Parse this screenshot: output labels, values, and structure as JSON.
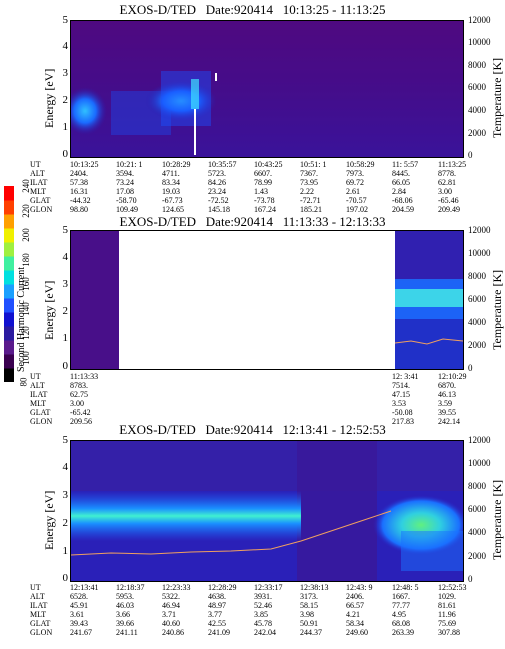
{
  "panels": [
    {
      "title": "EXOS-D/TED   Date:920414   10:13:25 - 11:13:25",
      "ylabel": "Energy [eV]",
      "ylabel_right": "Temperature [K]",
      "rows": [
        {
          "label": "UT",
          "values": [
            "10:13:25",
            "10:21: 1",
            "10:28:29",
            "10:35:57",
            "10:43:25",
            "10:51: 1",
            "10:58:29",
            "11: 5:57",
            "11:13:25"
          ]
        },
        {
          "label": "ALT",
          "values": [
            "2404.",
            "3594.",
            "4711.",
            "5723.",
            "6607.",
            "7367.",
            "7973.",
            "8445.",
            "8778."
          ]
        },
        {
          "label": "ILAT",
          "values": [
            "57.38",
            "73.24",
            "83.34",
            "84.26",
            "78.99",
            "73.95",
            "69.72",
            "66.05",
            "62.81"
          ]
        },
        {
          "label": "MLT",
          "values": [
            "16.31",
            "17.08",
            "19.03",
            "23.24",
            "1.43",
            "2.22",
            "2.61",
            "2.84",
            "3.00"
          ]
        },
        {
          "label": "GLAT",
          "values": [
            "-44.32",
            "-58.70",
            "-67.73",
            "-72.52",
            "-73.78",
            "-72.71",
            "-70.57",
            "-68.06",
            "-65.46"
          ]
        },
        {
          "label": "GLON",
          "values": [
            "98.80",
            "109.49",
            "124.65",
            "145.18",
            "167.24",
            "185.21",
            "197.02",
            "204.59",
            "209.49"
          ]
        }
      ]
    },
    {
      "title": "EXOS-D/TED   Date:920414   11:13:33 - 12:13:33",
      "ylabel": "Energy [eV]",
      "ylabel_right": "Temperature [K]",
      "rows": [
        {
          "label": "UT",
          "values": [
            "11:13:33",
            "",
            "",
            "",
            "",
            "",
            "",
            "12: 3:41",
            "12:10:29"
          ]
        },
        {
          "label": "ALT",
          "values": [
            "8783.",
            "",
            "",
            "",
            "",
            "",
            "",
            "7514.",
            "6870."
          ]
        },
        {
          "label": "ILAT",
          "values": [
            "62.75",
            "",
            "",
            "",
            "",
            "",
            "",
            "47.15",
            "46.13"
          ]
        },
        {
          "label": "MLT",
          "values": [
            "3.00",
            "",
            "",
            "",
            "",
            "",
            "",
            "3.53",
            "3.59"
          ]
        },
        {
          "label": "GLAT",
          "values": [
            "-65.42",
            "",
            "",
            "",
            "",
            "",
            "",
            "-50.08",
            "39.55"
          ]
        },
        {
          "label": "GLON",
          "values": [
            "209.56",
            "",
            "",
            "",
            "",
            "",
            "",
            "217.83",
            "242.14"
          ]
        }
      ]
    },
    {
      "title": "EXOS-D/TED   Date:920414   12:13:41 - 12:52:53",
      "ylabel": "Energy [eV]",
      "ylabel_right": "Temperature [K]",
      "rows": [
        {
          "label": "UT",
          "values": [
            "12:13:41",
            "12:18:37",
            "12:23:33",
            "12:28:29",
            "12:33:17",
            "12:38:13",
            "12:43: 9",
            "12:48: 5",
            "12:52:53"
          ]
        },
        {
          "label": "ALT",
          "values": [
            "6528.",
            "5953.",
            "5322.",
            "4638.",
            "3931.",
            "3173.",
            "2406.",
            "1667.",
            "1029."
          ]
        },
        {
          "label": "ILAT",
          "values": [
            "45.91",
            "46.03",
            "46.94",
            "48.97",
            "52.46",
            "58.15",
            "66.57",
            "77.77",
            "81.61"
          ]
        },
        {
          "label": "MLT",
          "values": [
            "3.61",
            "3.66",
            "3.71",
            "3.77",
            "3.85",
            "3.98",
            "4.21",
            "4.95",
            "11.96"
          ]
        },
        {
          "label": "GLAT",
          "values": [
            "39.43",
            "39.66",
            "40.60",
            "42.55",
            "45.78",
            "50.91",
            "58.34",
            "68.08",
            "75.69"
          ]
        },
        {
          "label": "GLON",
          "values": [
            "241.67",
            "241.11",
            "240.86",
            "241.09",
            "242.04",
            "244.37",
            "249.60",
            "263.39",
            "307.88"
          ]
        }
      ]
    }
  ],
  "colorbar": {
    "label": "Second Harmonic Current",
    "ticks": [
      "80",
      "100",
      "120",
      "140",
      "160",
      "180",
      "200",
      "220",
      "240"
    ],
    "colors": [
      "#000000",
      "#3a0050",
      "#5a1a8c",
      "#2a1aa0",
      "#1010d0",
      "#2050ff",
      "#1aa0ff",
      "#00e0e0",
      "#40f0a0",
      "#a0f040",
      "#f0f000",
      "#ffa000",
      "#ff4000",
      "#ff0000"
    ]
  },
  "chart_data": [
    {
      "type": "heatmap",
      "title": "EXOS-D/TED   Date:920414   10:13:25 - 11:13:25",
      "ylabel": "Energy [eV]",
      "ylabel_right": "Temperature [K]",
      "ylim": [
        0,
        5
      ],
      "ylim_right": [
        0,
        12000
      ],
      "yticks": [
        0,
        1,
        2,
        3,
        4,
        5
      ],
      "yticks_right": [
        0,
        2000,
        4000,
        6000,
        8000,
        10000,
        12000
      ]
    },
    {
      "type": "heatmap",
      "title": "EXOS-D/TED   Date:920414   11:13:33 - 12:13:33",
      "ylabel": "Energy [eV]",
      "ylabel_right": "Temperature [K]",
      "ylim": [
        0,
        5
      ],
      "ylim_right": [
        0,
        12000
      ],
      "yticks": [
        0,
        1,
        2,
        3,
        4,
        5
      ],
      "yticks_right": [
        0,
        2000,
        4000,
        6000,
        8000,
        10000,
        12000
      ]
    },
    {
      "type": "heatmap",
      "title": "EXOS-D/TED   Date:920414   12:13:41 - 12:52:53",
      "ylabel": "Energy [eV]",
      "ylabel_right": "Temperature [K]",
      "ylim": [
        0,
        5
      ],
      "ylim_right": [
        0,
        12000
      ],
      "yticks": [
        0,
        1,
        2,
        3,
        4,
        5
      ],
      "yticks_right": [
        0,
        2000,
        4000,
        6000,
        8000,
        10000,
        12000
      ]
    }
  ]
}
